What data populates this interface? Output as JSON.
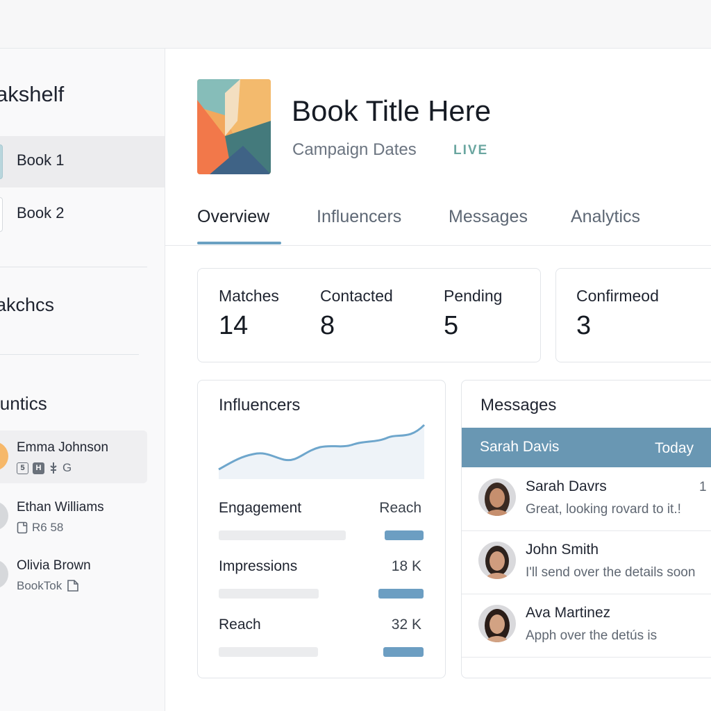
{
  "sidebar": {
    "section_titles": [
      "akshelf",
      "akchcs",
      "luntics"
    ],
    "books": [
      {
        "label": "Book 1",
        "active": true
      },
      {
        "label": "Book 2",
        "active": false
      }
    ],
    "influencers": [
      {
        "name": "Emma Johnson",
        "meta": "G"
      },
      {
        "name": "Ethan Williams",
        "meta": "R6 58"
      },
      {
        "name": "Olivia Brown",
        "meta": "BookTok"
      }
    ],
    "chips": [
      "5",
      "H"
    ]
  },
  "header": {
    "title": "Book Title Here",
    "subtitle": "Campaign Dates",
    "status": "LIVE"
  },
  "tabs": [
    {
      "label": "Overview",
      "active": true
    },
    {
      "label": "Influencers",
      "active": false
    },
    {
      "label": "Messages",
      "active": false
    },
    {
      "label": "Analytics",
      "active": false
    }
  ],
  "stats": [
    {
      "label": "Matches",
      "value": "14"
    },
    {
      "label": "Contacted",
      "value": "8"
    },
    {
      "label": "Pending",
      "value": "5"
    },
    {
      "label": "Confirmeod",
      "value": "3"
    }
  ],
  "influencers_card": {
    "title": "Influencers",
    "metrics": [
      {
        "label": "Engagement",
        "value": "Reach",
        "level": 0.55
      },
      {
        "label": "Impressions",
        "value": "18 K",
        "level": 0.55
      },
      {
        "label": "Reach",
        "value": "32 K",
        "level": 0.55
      }
    ]
  },
  "messages_card": {
    "title": "Messages",
    "header_name": "Sarah Davis",
    "header_when": "Today",
    "items": [
      {
        "name": "Sarah Davrs",
        "text": "Great, looking rovard to it.!",
        "count": "1"
      },
      {
        "name": "John Smith",
        "text": "I'll send over the details soon",
        "count": ""
      },
      {
        "name": "Ava Martinez",
        "text": "Apph over the detús is",
        "count": ""
      }
    ]
  },
  "colors": {
    "accent": "#6aa1c2",
    "live": "#6aa6a0",
    "message_header": "#6997b3",
    "bar_fill": "#6c9ec2"
  }
}
